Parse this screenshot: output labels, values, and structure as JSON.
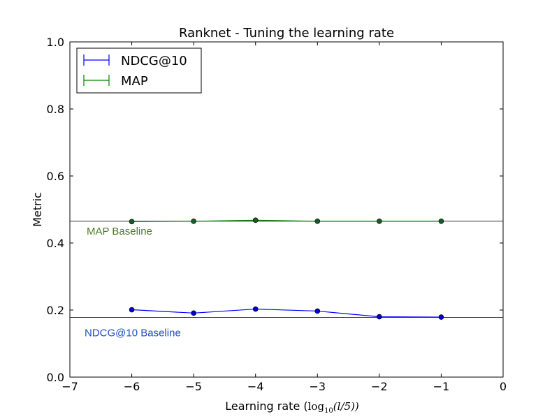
{
  "chart_data": {
    "type": "line",
    "title": "Ranknet - Tuning the learning rate",
    "xlabel_prefix": "Learning rate (",
    "xlabel_math": "log",
    "xlabel_math_sub": "10",
    "xlabel_math_arg": "(l/5))",
    "ylabel": "Metric",
    "xlim": [
      -7,
      0
    ],
    "ylim": [
      0.0,
      1.0
    ],
    "xticks": [
      -7,
      -6,
      -5,
      -4,
      -3,
      -2,
      -1,
      0
    ],
    "xtick_labels": [
      "−7",
      "−6",
      "−5",
      "−4",
      "−3",
      "−2",
      "−1",
      "0"
    ],
    "yticks": [
      0.0,
      0.2,
      0.4,
      0.6,
      0.8,
      1.0
    ],
    "ytick_labels": [
      "0.0",
      "0.2",
      "0.4",
      "0.6",
      "0.8",
      "1.0"
    ],
    "x": [
      -6,
      -5,
      -4,
      -3,
      -2,
      -1
    ],
    "series": [
      {
        "name": "NDCG@10",
        "color": "#0000ff",
        "values": [
          0.201,
          0.191,
          0.203,
          0.197,
          0.18,
          0.179
        ],
        "err": [
          0.004,
          0.004,
          0.004,
          0.003,
          0.003,
          0.003
        ]
      },
      {
        "name": "MAP",
        "color": "#008000",
        "values": [
          0.464,
          0.465,
          0.468,
          0.465,
          0.465,
          0.465
        ],
        "err": [
          0.003,
          0.003,
          0.003,
          0.003,
          0.003,
          0.003
        ]
      }
    ],
    "baselines": [
      {
        "label": "MAP Baseline",
        "value": 0.465,
        "color": "#4d7a2a"
      },
      {
        "label": "NDCG@10 Baseline",
        "value": 0.178,
        "color": "#1f4fbf"
      }
    ],
    "legend_position": "upper-left",
    "grid": false
  }
}
